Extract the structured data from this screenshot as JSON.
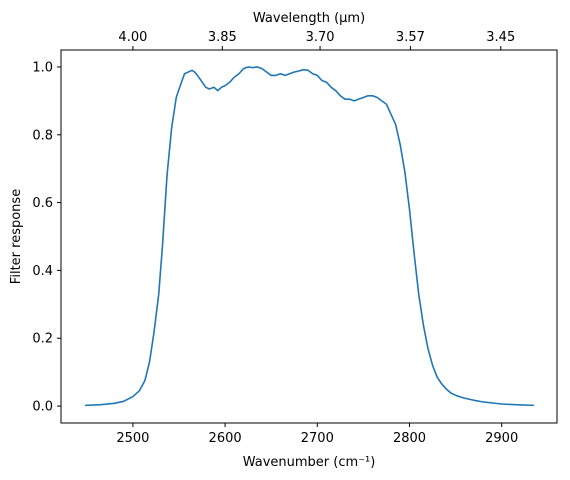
{
  "chart_data": {
    "type": "line",
    "xlabel": "Wavenumber (cm⁻¹)",
    "ylabel": "Filter response",
    "top_xlabel": "Wavelength (μm)",
    "xlim": [
      2422,
      2960
    ],
    "ylim": [
      -0.05,
      1.05
    ],
    "x_ticks": [
      2500,
      2600,
      2700,
      2800,
      2900
    ],
    "x_tick_labels": [
      "2500",
      "2600",
      "2700",
      "2800",
      "2900"
    ],
    "y_ticks": [
      0.0,
      0.2,
      0.4,
      0.6,
      0.8,
      1.0
    ],
    "y_tick_labels": [
      "0.0",
      "0.2",
      "0.4",
      "0.6",
      "0.8",
      "1.0"
    ],
    "top_ticks": [
      {
        "label": "4.00",
        "wavenumber": 2500
      },
      {
        "label": "3.85",
        "wavenumber": 2597
      },
      {
        "label": "3.70",
        "wavenumber": 2703
      },
      {
        "label": "3.57",
        "wavenumber": 2801
      },
      {
        "label": "3.45",
        "wavenumber": 2899
      }
    ],
    "grid": false,
    "series": [
      {
        "color": "#1f77b4",
        "x": [
          2448,
          2465,
          2480,
          2490,
          2500,
          2507,
          2513,
          2518,
          2523,
          2528,
          2532,
          2537,
          2542,
          2547,
          2552,
          2556,
          2560,
          2564,
          2567,
          2570,
          2574,
          2579,
          2583,
          2588,
          2592,
          2596,
          2600,
          2605,
          2610,
          2615,
          2620,
          2625,
          2630,
          2635,
          2640,
          2645,
          2650,
          2655,
          2660,
          2665,
          2670,
          2675,
          2680,
          2685,
          2690,
          2695,
          2700,
          2705,
          2710,
          2715,
          2720,
          2725,
          2730,
          2735,
          2740,
          2745,
          2750,
          2755,
          2760,
          2765,
          2770,
          2775,
          2780,
          2785,
          2790,
          2795,
          2800,
          2805,
          2810,
          2815,
          2820,
          2825,
          2830,
          2835,
          2840,
          2845,
          2850,
          2855,
          2860,
          2870,
          2880,
          2890,
          2900,
          2915,
          2935
        ],
        "y": [
          0.002,
          0.004,
          0.008,
          0.014,
          0.028,
          0.045,
          0.075,
          0.13,
          0.22,
          0.33,
          0.47,
          0.68,
          0.82,
          0.91,
          0.95,
          0.98,
          0.985,
          0.99,
          0.985,
          0.975,
          0.96,
          0.94,
          0.935,
          0.94,
          0.93,
          0.94,
          0.945,
          0.955,
          0.97,
          0.98,
          0.995,
          1.0,
          0.998,
          1.0,
          0.995,
          0.985,
          0.975,
          0.975,
          0.98,
          0.975,
          0.98,
          0.985,
          0.988,
          0.992,
          0.99,
          0.98,
          0.975,
          0.96,
          0.955,
          0.94,
          0.93,
          0.915,
          0.905,
          0.905,
          0.9,
          0.905,
          0.91,
          0.915,
          0.915,
          0.91,
          0.9,
          0.89,
          0.86,
          0.83,
          0.77,
          0.69,
          0.58,
          0.45,
          0.33,
          0.24,
          0.17,
          0.12,
          0.085,
          0.065,
          0.05,
          0.038,
          0.032,
          0.027,
          0.023,
          0.017,
          0.012,
          0.009,
          0.006,
          0.004,
          0.002
        ]
      }
    ]
  }
}
